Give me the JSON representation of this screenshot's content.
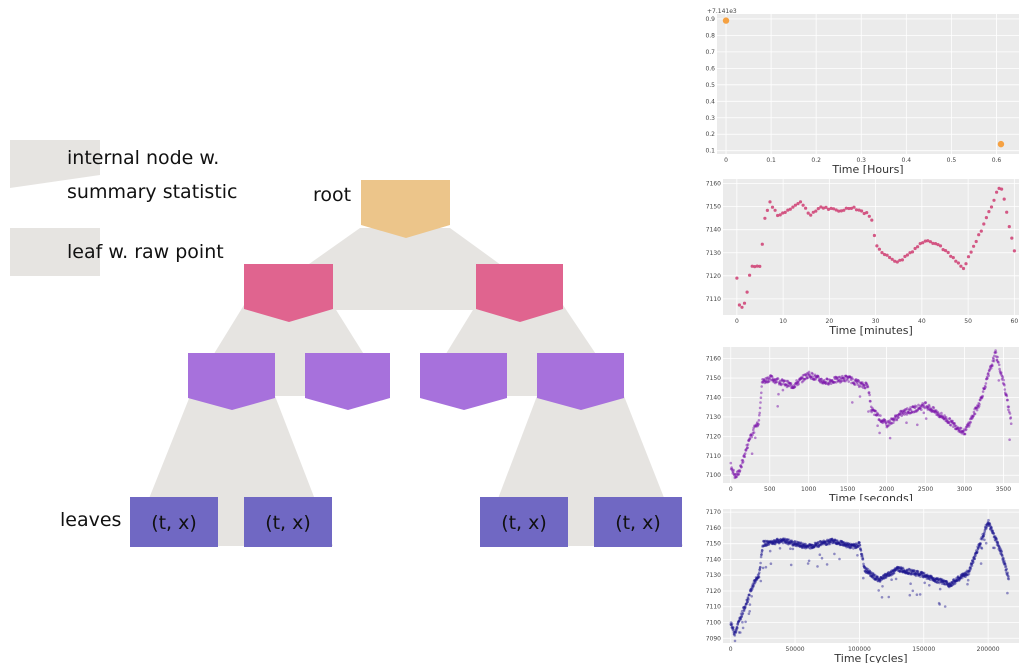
{
  "legend": {
    "internal_line1": "internal node w.",
    "internal_line2": "summary statistic",
    "leaf": "leaf w. raw point"
  },
  "tree": {
    "root_label": "root",
    "leaves_label": "leaves",
    "leaf_texts": [
      "(t, x)",
      "(t, x)",
      "(t, x)",
      "(t, x)"
    ],
    "colors": {
      "root": "#ecc58a",
      "level1": "#e0648f",
      "level2": "#a771dc",
      "leaf": "#7068c3",
      "shadow": "#e6e4e1"
    }
  },
  "chart_data": [
    {
      "type": "scatter",
      "xlabel": "Time [Hours]",
      "offset_label": "+7.141e3",
      "xlim": [
        -0.02,
        0.65
      ],
      "ylim": [
        0.08,
        0.93
      ],
      "xticks": [
        0.0,
        0.1,
        0.2,
        0.3,
        0.4,
        0.5,
        0.6
      ],
      "yticks": [
        0.1,
        0.2,
        0.3,
        0.4,
        0.5,
        0.6,
        0.7,
        0.8,
        0.9
      ],
      "points": [
        [
          0.0,
          0.89
        ],
        [
          0.61,
          0.14
        ]
      ],
      "color": "#f5a142"
    },
    {
      "type": "scatter",
      "xlabel": "Time [minutes]",
      "xlim": [
        -3,
        61
      ],
      "ylim": [
        7103,
        7162
      ],
      "xticks": [
        0,
        10,
        20,
        30,
        40,
        50,
        60
      ],
      "yticks": [
        7110,
        7120,
        7130,
        7140,
        7150,
        7160
      ],
      "knots": [
        [
          0,
          7119
        ],
        [
          0.5,
          7108
        ],
        [
          1,
          7106
        ],
        [
          2,
          7110
        ],
        [
          3,
          7124
        ],
        [
          5,
          7124
        ],
        [
          6,
          7144
        ],
        [
          7,
          7152
        ],
        [
          9,
          7146
        ],
        [
          12,
          7150
        ],
        [
          14,
          7152
        ],
        [
          16,
          7146
        ],
        [
          18,
          7150
        ],
        [
          22,
          7148
        ],
        [
          25,
          7150
        ],
        [
          28,
          7147
        ],
        [
          29,
          7146
        ],
        [
          30,
          7134
        ],
        [
          32,
          7129
        ],
        [
          35,
          7126
        ],
        [
          38,
          7131
        ],
        [
          41,
          7136
        ],
        [
          44,
          7133
        ],
        [
          47,
          7127
        ],
        [
          49,
          7123
        ],
        [
          52,
          7136
        ],
        [
          55,
          7150
        ],
        [
          57,
          7160
        ],
        [
          58,
          7152
        ],
        [
          59,
          7140
        ],
        [
          60,
          7131
        ]
      ],
      "color": "#cf3d72"
    },
    {
      "type": "scatter",
      "xlabel": "Time [seconds]",
      "xlim": [
        -100,
        3700
      ],
      "ylim": [
        7096,
        7166
      ],
      "xticks": [
        0,
        500,
        1000,
        1500,
        2000,
        2500,
        3000,
        3500
      ],
      "yticks": [
        7100,
        7110,
        7120,
        7130,
        7140,
        7150,
        7160
      ],
      "knots": [
        [
          0,
          7105
        ],
        [
          60,
          7099
        ],
        [
          120,
          7103
        ],
        [
          250,
          7120
        ],
        [
          360,
          7128
        ],
        [
          400,
          7148
        ],
        [
          500,
          7150
        ],
        [
          800,
          7146
        ],
        [
          1000,
          7152
        ],
        [
          1200,
          7148
        ],
        [
          1500,
          7150
        ],
        [
          1700,
          7146
        ],
        [
          1760,
          7147
        ],
        [
          1800,
          7134
        ],
        [
          2000,
          7126
        ],
        [
          2200,
          7132
        ],
        [
          2500,
          7136
        ],
        [
          2800,
          7128
        ],
        [
          3000,
          7122
        ],
        [
          3200,
          7138
        ],
        [
          3400,
          7163
        ],
        [
          3500,
          7148
        ],
        [
          3600,
          7128
        ]
      ],
      "color": "#7a12a9"
    },
    {
      "type": "scatter",
      "xlabel": "Time [cycles]",
      "xlim": [
        -6000,
        224000
      ],
      "ylim": [
        7087,
        7172
      ],
      "xticks": [
        0,
        50000,
        100000,
        150000,
        200000
      ],
      "yticks": [
        7090,
        7100,
        7110,
        7120,
        7130,
        7140,
        7150,
        7160,
        7170
      ],
      "knots": [
        [
          0,
          7100
        ],
        [
          3000,
          7093
        ],
        [
          8000,
          7104
        ],
        [
          18000,
          7125
        ],
        [
          22000,
          7130
        ],
        [
          25000,
          7150
        ],
        [
          40000,
          7152
        ],
        [
          60000,
          7148
        ],
        [
          80000,
          7152
        ],
        [
          95000,
          7148
        ],
        [
          100000,
          7150
        ],
        [
          104000,
          7134
        ],
        [
          115000,
          7127
        ],
        [
          130000,
          7134
        ],
        [
          150000,
          7130
        ],
        [
          170000,
          7124
        ],
        [
          185000,
          7132
        ],
        [
          200000,
          7164
        ],
        [
          210000,
          7145
        ],
        [
          216000,
          7128
        ]
      ],
      "color": "#1a158e"
    }
  ]
}
